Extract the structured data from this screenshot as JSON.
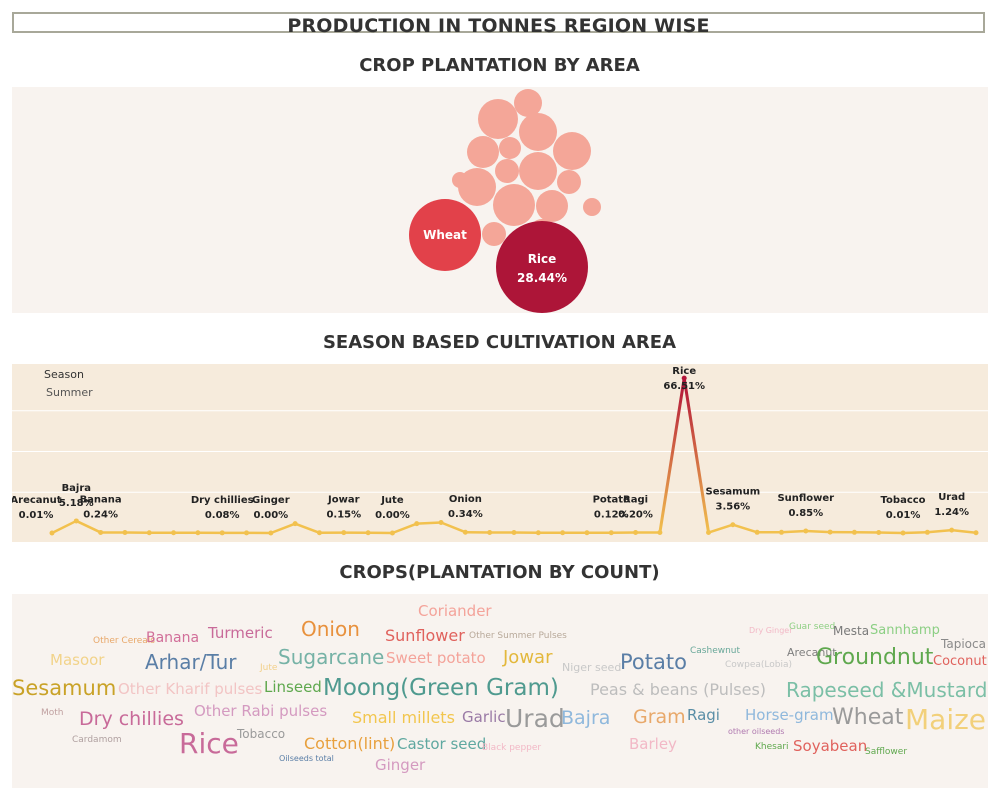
{
  "main_title": "PRODUCTION IN TONNES REGION WISE",
  "sections": {
    "bubble_title": "CROP PLANTATION BY AREA",
    "line_title": "SEASON BASED CULTIVATION AREA",
    "cloud_title": "CROPS(PLANTATION BY COUNT)"
  },
  "chart_data": [
    {
      "type": "bubble",
      "title": "CROP PLANTATION BY AREA",
      "labeled_bubbles": [
        {
          "label": "Rice",
          "value_label": "28.44%",
          "value": 28.44,
          "color": "#ad1538"
        },
        {
          "label": "Wheat",
          "value_label": "",
          "color": "#e2414a"
        }
      ],
      "unlabeled_bubble_count": 17,
      "small_bubble_color": "#f4a698"
    },
    {
      "type": "line",
      "title": "SEASON BASED CULTIVATION AREA",
      "legend_title": "Season",
      "legend_value": "Summer",
      "y_unit": "%",
      "ylim": [
        0,
        70
      ],
      "values": [
        0.01,
        5.18,
        0.24,
        0.2,
        0.1,
        0.1,
        0.1,
        0.08,
        0.05,
        0.0,
        4.0,
        0.1,
        0.15,
        0.1,
        0.0,
        4.0,
        4.5,
        0.34,
        0.2,
        0.2,
        0.1,
        0.1,
        0.1,
        0.12,
        0.2,
        0.2,
        66.51,
        0.2,
        3.56,
        0.3,
        0.3,
        0.85,
        0.4,
        0.3,
        0.2,
        0.01,
        0.3,
        1.24,
        0.1
      ],
      "point_labels": [
        {
          "index": 0,
          "label": "Arecanut",
          "value_label": "0.01%"
        },
        {
          "index": 1,
          "label": "Bajra",
          "value_label": "5.18%"
        },
        {
          "index": 2,
          "label": "Banana",
          "value_label": "0.24%"
        },
        {
          "index": 7,
          "label": "Dry chillies",
          "value_label": "0.08%"
        },
        {
          "index": 9,
          "label": "Ginger",
          "value_label": "0.00%"
        },
        {
          "index": 12,
          "label": "Jowar",
          "value_label": "0.15%"
        },
        {
          "index": 14,
          "label": "Jute",
          "value_label": "0.00%"
        },
        {
          "index": 17,
          "label": "Onion",
          "value_label": "0.34%"
        },
        {
          "index": 23,
          "label": "Potato",
          "value_label": "0.12%"
        },
        {
          "index": 24,
          "label": "Ragi",
          "value_label": "0.20%"
        },
        {
          "index": 26,
          "label": "Rice",
          "value_label": "66.51%"
        },
        {
          "index": 28,
          "label": "Sesamum",
          "value_label": "3.56%"
        },
        {
          "index": 31,
          "label": "Sunflower",
          "value_label": "0.85%"
        },
        {
          "index": 35,
          "label": "Tobacco",
          "value_label": "0.01%"
        },
        {
          "index": 37,
          "label": "Urad",
          "value_label": "1.24%"
        }
      ],
      "line_color": "#f2c14e",
      "peak_color": "#b3163a"
    }
  ],
  "word_cloud": [
    {
      "text": "Coriander",
      "color": "#f4a39a"
    },
    {
      "text": "Onion",
      "color": "#e8913d"
    },
    {
      "text": "Sunflower",
      "color": "#e0625d"
    },
    {
      "text": "Other Summer Pulses",
      "color": "#b8a99a"
    },
    {
      "text": "Other Cereals",
      "color": "#e8a86a"
    },
    {
      "text": "Banana",
      "color": "#d16e99"
    },
    {
      "text": "Turmeric",
      "color": "#c86a99"
    },
    {
      "text": "Dry Ginger",
      "color": "#f2b8c6"
    },
    {
      "text": "Guar seed",
      "color": "#8fcf84"
    },
    {
      "text": "Mesta",
      "color": "#7a7a7a"
    },
    {
      "text": "Sannhamp",
      "color": "#8ccf84"
    },
    {
      "text": "Tapioca",
      "color": "#8a8a8a"
    },
    {
      "text": "Cashewnut",
      "color": "#6aa89a"
    },
    {
      "text": "Arecanut",
      "color": "#7f7f7f"
    },
    {
      "text": "Masoor",
      "color": "#f2d38a"
    },
    {
      "text": "Arhar/Tur",
      "color": "#5a7ea6"
    },
    {
      "text": "Jute",
      "color": "#f2d08a"
    },
    {
      "text": "Sugarcane",
      "color": "#76b2a6"
    },
    {
      "text": "Sweet potato",
      "color": "#f4a39a"
    },
    {
      "text": "Jowar",
      "color": "#e3b83c"
    },
    {
      "text": "Niger seed",
      "color": "#c8c8c8"
    },
    {
      "text": "Potato",
      "color": "#5a7ea6"
    },
    {
      "text": "Cowpea(Lobia)",
      "color": "#c8c8c8"
    },
    {
      "text": "Groundnut",
      "color": "#5fa84e"
    },
    {
      "text": "Coconut",
      "color": "#e0625d"
    },
    {
      "text": "Sesamum",
      "color": "#c9a227"
    },
    {
      "text": "Other Kharif pulses",
      "color": "#f2c4c4"
    },
    {
      "text": "Linseed",
      "color": "#5fa84e"
    },
    {
      "text": "Moong(Green Gram)",
      "color": "#4f9a8f"
    },
    {
      "text": "Peas & beans (Pulses)",
      "color": "#bdbdbd"
    },
    {
      "text": "Rapeseed &Mustard",
      "color": "#7bbfa6"
    },
    {
      "text": "Moth",
      "color": "#c0a0a0"
    },
    {
      "text": "Dry chillies",
      "color": "#c86a99"
    },
    {
      "text": "Other Rabi pulses",
      "color": "#d49ac0"
    },
    {
      "text": "Small millets",
      "color": "#f2c64e"
    },
    {
      "text": "Garlic",
      "color": "#9a7aa6"
    },
    {
      "text": "Urad",
      "color": "#9a9a9a"
    },
    {
      "text": "Bajra",
      "color": "#8fb8dc"
    },
    {
      "text": "Gram",
      "color": "#e8a86a"
    },
    {
      "text": "Ragi",
      "color": "#5a8ea6"
    },
    {
      "text": "Horse-gram",
      "color": "#8fb8dc"
    },
    {
      "text": "Wheat",
      "color": "#9a9a9a"
    },
    {
      "text": "Maize",
      "color": "#f2d07a"
    },
    {
      "text": "Cardamom",
      "color": "#b0a0a0"
    },
    {
      "text": "Rice",
      "color": "#c86a99"
    },
    {
      "text": "Tobacco",
      "color": "#9a9a9a"
    },
    {
      "text": "Cotton(lint)",
      "color": "#e8a03d"
    },
    {
      "text": "Castor seed",
      "color": "#5fa8a0"
    },
    {
      "text": "Black pepper",
      "color": "#f2b8c6"
    },
    {
      "text": "Barley",
      "color": "#f2b8c6"
    },
    {
      "text": "other oilseeds",
      "color": "#b07ab0"
    },
    {
      "text": "Khesari",
      "color": "#5fa84e"
    },
    {
      "text": "Soyabean",
      "color": "#e0625d"
    },
    {
      "text": "Safflower",
      "color": "#5fa84e"
    },
    {
      "text": "Oilseeds total",
      "color": "#5a7ea6"
    },
    {
      "text": "Ginger",
      "color": "#d49ac0"
    }
  ]
}
